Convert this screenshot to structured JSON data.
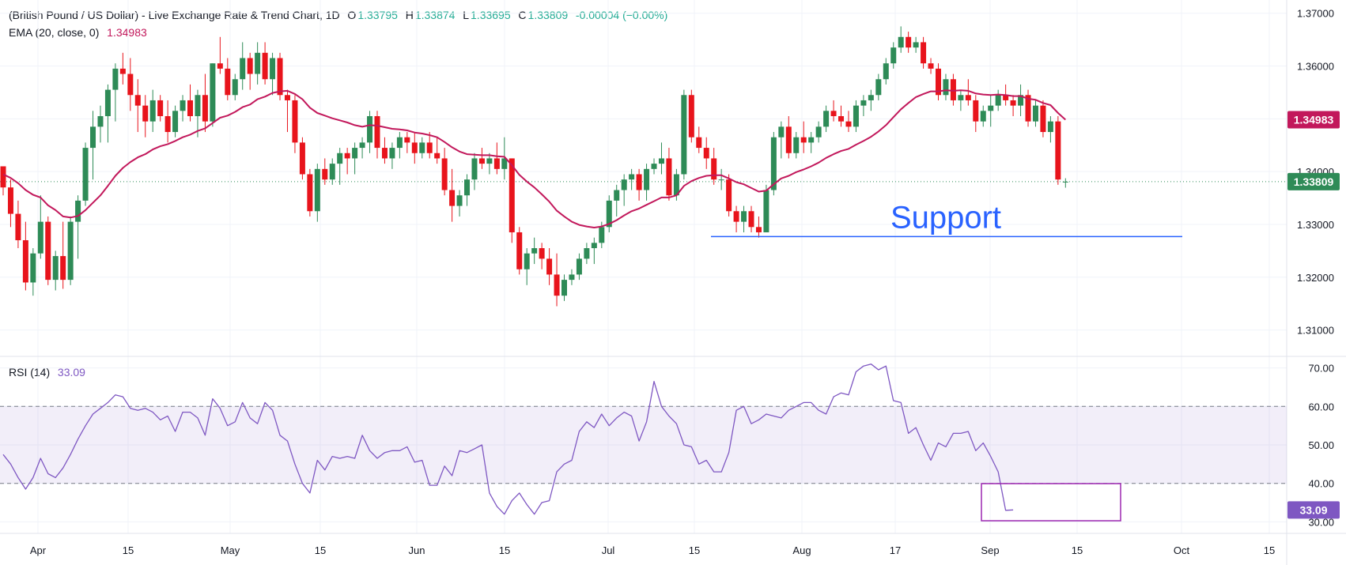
{
  "header": {
    "title": "(British Pound / US Dollar) - Live Exchange Rate & Trend Chart, 1D",
    "o_label": "O",
    "o": "1.33795",
    "h_label": "H",
    "h": "1.33874",
    "l_label": "L",
    "l": "1.33695",
    "c_label": "C",
    "c": "1.33809",
    "change": "-0.00004 (−0.00%)",
    "ema_label": "EMA (20, close, 0)",
    "ema_value": "1.34983",
    "rsi_label": "RSI (14)",
    "rsi_value": "33.09"
  },
  "colors": {
    "up": "#2E8B57",
    "down": "#E8141C",
    "ema": "#C2185B",
    "rsi": "#7E57C2",
    "support": "#2962FF",
    "price_label_bg": "#2E8B57"
  },
  "chart_data": [
    {
      "type": "candlestick",
      "ylim": [
        1.305,
        1.3725
      ],
      "y_ticks": [
        "1.37000",
        "1.36000",
        "1.35000",
        "1.34000",
        "1.33000",
        "1.32000",
        "1.31000"
      ],
      "x_ticks": [
        "Apr",
        "15",
        "May",
        "15",
        "Jun",
        "15",
        "Jul",
        "15",
        "Aug",
        "17",
        "Sep",
        "15",
        "Oct",
        "15"
      ],
      "last_price": "1.33809",
      "ema_last": "1.34983",
      "annotation": "Support",
      "support_level": 1.3277,
      "ohlc": [
        [
          1.341,
          1.341,
          1.3355,
          1.337
        ],
        [
          1.337,
          1.3385,
          1.3295,
          1.332
        ],
        [
          1.332,
          1.3345,
          1.3255,
          1.327
        ],
        [
          1.327,
          1.3305,
          1.3175,
          1.319
        ],
        [
          1.319,
          1.3255,
          1.3165,
          1.3245
        ],
        [
          1.3245,
          1.3355,
          1.3235,
          1.3305
        ],
        [
          1.3305,
          1.3315,
          1.3185,
          1.3195
        ],
        [
          1.3195,
          1.325,
          1.3175,
          1.324
        ],
        [
          1.324,
          1.3305,
          1.3178,
          1.3195
        ],
        [
          1.3195,
          1.3315,
          1.3185,
          1.3305
        ],
        [
          1.3305,
          1.3355,
          1.3235,
          1.3345
        ],
        [
          1.3345,
          1.3455,
          1.3335,
          1.3445
        ],
        [
          1.3445,
          1.3515,
          1.3385,
          1.3485
        ],
        [
          1.3485,
          1.3525,
          1.3455,
          1.3505
        ],
        [
          1.3505,
          1.3565,
          1.3455,
          1.3555
        ],
        [
          1.3555,
          1.3605,
          1.3495,
          1.3595
        ],
        [
          1.3595,
          1.3625,
          1.3565,
          1.3585
        ],
        [
          1.3585,
          1.3615,
          1.3515,
          1.3545
        ],
        [
          1.3545,
          1.3575,
          1.3475,
          1.3525
        ],
        [
          1.3525,
          1.3545,
          1.3465,
          1.3495
        ],
        [
          1.3495,
          1.3555,
          1.3475,
          1.3535
        ],
        [
          1.3535,
          1.3545,
          1.3495,
          1.3505
        ],
        [
          1.3505,
          1.3535,
          1.3455,
          1.3475
        ],
        [
          1.3475,
          1.3525,
          1.3465,
          1.3515
        ],
        [
          1.3515,
          1.3545,
          1.3495,
          1.3535
        ],
        [
          1.3535,
          1.3565,
          1.3495,
          1.3505
        ],
        [
          1.3505,
          1.3555,
          1.3465,
          1.3545
        ],
        [
          1.3545,
          1.3585,
          1.3475,
          1.3495
        ],
        [
          1.3495,
          1.3605,
          1.3485,
          1.3605
        ],
        [
          1.3605,
          1.3655,
          1.3585,
          1.3595
        ],
        [
          1.3595,
          1.3615,
          1.3535,
          1.3545
        ],
        [
          1.3545,
          1.3585,
          1.3535,
          1.3575
        ],
        [
          1.3575,
          1.3645,
          1.3555,
          1.3615
        ],
        [
          1.3615,
          1.3625,
          1.3555,
          1.3585
        ],
        [
          1.3585,
          1.3645,
          1.3565,
          1.3625
        ],
        [
          1.3625,
          1.3645,
          1.3565,
          1.3575
        ],
        [
          1.3575,
          1.3625,
          1.3545,
          1.3615
        ],
        [
          1.3615,
          1.3625,
          1.3535,
          1.3545
        ],
        [
          1.3545,
          1.3555,
          1.3475,
          1.3535
        ],
        [
          1.3535,
          1.3545,
          1.3435,
          1.3455
        ],
        [
          1.3455,
          1.3465,
          1.3385,
          1.3395
        ],
        [
          1.3395,
          1.3405,
          1.3315,
          1.3325
        ],
        [
          1.3325,
          1.3415,
          1.3305,
          1.3405
        ],
        [
          1.3405,
          1.3425,
          1.3375,
          1.3385
        ],
        [
          1.3385,
          1.3425,
          1.3375,
          1.3415
        ],
        [
          1.3415,
          1.3445,
          1.3375,
          1.3435
        ],
        [
          1.3435,
          1.3445,
          1.3395,
          1.3425
        ],
        [
          1.3425,
          1.3455,
          1.3395,
          1.3445
        ],
        [
          1.3445,
          1.3465,
          1.3425,
          1.3455
        ],
        [
          1.3455,
          1.3515,
          1.3435,
          1.3505
        ],
        [
          1.3505,
          1.3515,
          1.3425,
          1.3445
        ],
        [
          1.3445,
          1.3465,
          1.3415,
          1.3425
        ],
        [
          1.3425,
          1.3455,
          1.3405,
          1.3445
        ],
        [
          1.3445,
          1.3475,
          1.3425,
          1.3465
        ],
        [
          1.3465,
          1.3475,
          1.3435,
          1.3455
        ],
        [
          1.3455,
          1.3475,
          1.3415,
          1.3435
        ],
        [
          1.3435,
          1.3465,
          1.3425,
          1.3455
        ],
        [
          1.3455,
          1.3475,
          1.3425,
          1.3435
        ],
        [
          1.3435,
          1.3465,
          1.3415,
          1.3425
        ],
        [
          1.3425,
          1.3445,
          1.3355,
          1.3365
        ],
        [
          1.3365,
          1.3405,
          1.3305,
          1.3335
        ],
        [
          1.3335,
          1.3365,
          1.3315,
          1.3355
        ],
        [
          1.3355,
          1.3395,
          1.3335,
          1.3385
        ],
        [
          1.3385,
          1.3435,
          1.3365,
          1.3425
        ],
        [
          1.3425,
          1.3445,
          1.3405,
          1.3415
        ],
        [
          1.3415,
          1.3435,
          1.3395,
          1.3425
        ],
        [
          1.3425,
          1.3455,
          1.3395,
          1.3405
        ],
        [
          1.3405,
          1.3465,
          1.3385,
          1.3425
        ],
        [
          1.3425,
          1.3425,
          1.3265,
          1.3285
        ],
        [
          1.3285,
          1.3295,
          1.3205,
          1.3215
        ],
        [
          1.3215,
          1.3255,
          1.3185,
          1.3245
        ],
        [
          1.3245,
          1.3275,
          1.3225,
          1.3255
        ],
        [
          1.3255,
          1.3265,
          1.3215,
          1.3235
        ],
        [
          1.3235,
          1.3255,
          1.3185,
          1.3205
        ],
        [
          1.3205,
          1.3245,
          1.3145,
          1.3165
        ],
        [
          1.3165,
          1.3205,
          1.3155,
          1.3195
        ],
        [
          1.3195,
          1.3215,
          1.3185,
          1.3205
        ],
        [
          1.3205,
          1.3245,
          1.3195,
          1.3235
        ],
        [
          1.3235,
          1.3265,
          1.3225,
          1.3255
        ],
        [
          1.3255,
          1.3275,
          1.3225,
          1.3265
        ],
        [
          1.3265,
          1.3305,
          1.3255,
          1.3295
        ],
        [
          1.3295,
          1.3355,
          1.3285,
          1.3345
        ],
        [
          1.3345,
          1.3375,
          1.3315,
          1.3365
        ],
        [
          1.3365,
          1.3395,
          1.3335,
          1.3385
        ],
        [
          1.3385,
          1.3405,
          1.3365,
          1.3395
        ],
        [
          1.3395,
          1.3405,
          1.3345,
          1.3365
        ],
        [
          1.3365,
          1.3415,
          1.3345,
          1.3405
        ],
        [
          1.3405,
          1.3425,
          1.3395,
          1.3415
        ],
        [
          1.3415,
          1.3455,
          1.3395,
          1.3425
        ],
        [
          1.3425,
          1.3445,
          1.3345,
          1.3355
        ],
        [
          1.3355,
          1.3405,
          1.3345,
          1.3395
        ],
        [
          1.3395,
          1.3555,
          1.3385,
          1.3545
        ],
        [
          1.3545,
          1.3555,
          1.3455,
          1.3465
        ],
        [
          1.3465,
          1.3485,
          1.3435,
          1.3445
        ],
        [
          1.3445,
          1.3465,
          1.3405,
          1.3425
        ],
        [
          1.3425,
          1.3445,
          1.3375,
          1.3385
        ],
        [
          1.3385,
          1.3405,
          1.3365,
          1.3385
        ],
        [
          1.3385,
          1.3395,
          1.3315,
          1.3325
        ],
        [
          1.3325,
          1.3335,
          1.3285,
          1.3305
        ],
        [
          1.3305,
          1.3335,
          1.3285,
          1.3325
        ],
        [
          1.3325,
          1.3335,
          1.3285,
          1.3295
        ],
        [
          1.3295,
          1.3315,
          1.3275,
          1.3285
        ],
        [
          1.3285,
          1.3375,
          1.3285,
          1.3365
        ],
        [
          1.3365,
          1.3475,
          1.3355,
          1.3465
        ],
        [
          1.3465,
          1.3495,
          1.3425,
          1.3485
        ],
        [
          1.3485,
          1.3505,
          1.3425,
          1.3435
        ],
        [
          1.3435,
          1.3475,
          1.3425,
          1.3465
        ],
        [
          1.3465,
          1.3495,
          1.3435,
          1.3455
        ],
        [
          1.3455,
          1.3475,
          1.3435,
          1.3465
        ],
        [
          1.3465,
          1.3495,
          1.3455,
          1.3485
        ],
        [
          1.3485,
          1.3525,
          1.3475,
          1.3515
        ],
        [
          1.3515,
          1.3535,
          1.3495,
          1.3505
        ],
        [
          1.3505,
          1.3525,
          1.3485,
          1.3495
        ],
        [
          1.3495,
          1.3515,
          1.3475,
          1.3485
        ],
        [
          1.3485,
          1.3535,
          1.3475,
          1.3525
        ],
        [
          1.3525,
          1.3545,
          1.3505,
          1.3535
        ],
        [
          1.3535,
          1.3555,
          1.3515,
          1.3545
        ],
        [
          1.3545,
          1.3585,
          1.3535,
          1.3575
        ],
        [
          1.3575,
          1.3615,
          1.3565,
          1.3605
        ],
        [
          1.3605,
          1.3645,
          1.3595,
          1.3635
        ],
        [
          1.3635,
          1.3675,
          1.3625,
          1.3655
        ],
        [
          1.3655,
          1.3665,
          1.3625,
          1.3635
        ],
        [
          1.3635,
          1.3655,
          1.3625,
          1.3645
        ],
        [
          1.3645,
          1.3655,
          1.3595,
          1.3605
        ],
        [
          1.3605,
          1.3615,
          1.3585,
          1.3595
        ],
        [
          1.3595,
          1.3605,
          1.3535,
          1.3545
        ],
        [
          1.3545,
          1.3585,
          1.3535,
          1.3575
        ],
        [
          1.3575,
          1.3585,
          1.3525,
          1.3535
        ],
        [
          1.3535,
          1.3555,
          1.3515,
          1.3545
        ],
        [
          1.3545,
          1.3575,
          1.3525,
          1.3535
        ],
        [
          1.3535,
          1.3545,
          1.3475,
          1.3495
        ],
        [
          1.3495,
          1.3525,
          1.3485,
          1.3515
        ],
        [
          1.3515,
          1.3545,
          1.3485,
          1.3525
        ],
        [
          1.3525,
          1.3555,
          1.3515,
          1.3545
        ],
        [
          1.3545,
          1.3565,
          1.3525,
          1.3535
        ],
        [
          1.3535,
          1.3545,
          1.3505,
          1.3525
        ],
        [
          1.3525,
          1.3565,
          1.3505,
          1.3545
        ],
        [
          1.3545,
          1.3555,
          1.3485,
          1.3495
        ],
        [
          1.3495,
          1.3535,
          1.3485,
          1.3525
        ],
        [
          1.3525,
          1.3535,
          1.3465,
          1.3475
        ],
        [
          1.3475,
          1.3505,
          1.3455,
          1.3495
        ],
        [
          1.3495,
          1.3505,
          1.3375,
          1.3385
        ],
        [
          1.33795,
          1.33874,
          1.33695,
          1.33809
        ]
      ],
      "ema": [
        1.3395,
        1.3388,
        1.3378,
        1.3365,
        1.3356,
        1.3351,
        1.3336,
        1.3327,
        1.3315,
        1.3313,
        1.3316,
        1.3327,
        1.3341,
        1.3355,
        1.3373,
        1.3392,
        1.3407,
        1.3418,
        1.3427,
        1.3433,
        1.3442,
        1.3448,
        1.3452,
        1.3458,
        1.3465,
        1.347,
        1.3477,
        1.3482,
        1.3492,
        1.3502,
        1.3506,
        1.3513,
        1.3522,
        1.3527,
        1.3537,
        1.3542,
        1.3549,
        1.3552,
        1.3553,
        1.3547,
        1.3537,
        1.3521,
        1.3511,
        1.3506,
        1.3501,
        1.3497,
        1.3493,
        1.3488,
        1.3485,
        1.3488,
        1.3487,
        1.3484,
        1.3481,
        1.348,
        1.3478,
        1.3474,
        1.3472,
        1.3469,
        1.3465,
        1.3456,
        1.3446,
        1.3438,
        1.3433,
        1.3432,
        1.3431,
        1.3431,
        1.3429,
        1.3428,
        1.3412,
        1.3394,
        1.3381,
        1.337,
        1.3357,
        1.3343,
        1.3326,
        1.3315,
        1.3305,
        1.3299,
        1.3296,
        1.3294,
        1.3296,
        1.3301,
        1.3308,
        1.3317,
        1.3325,
        1.333,
        1.3337,
        1.3344,
        1.3351,
        1.3351,
        1.3355,
        1.3373,
        1.3382,
        1.3388,
        1.3392,
        1.3393,
        1.3393,
        1.3387,
        1.338,
        1.3376,
        1.3369,
        1.3362,
        1.3364,
        1.3376,
        1.3387,
        1.3392,
        1.3399,
        1.3404,
        1.341,
        1.3417,
        1.3426,
        1.3433,
        1.3439,
        1.3443,
        1.3451,
        1.3458,
        1.3466,
        1.3476,
        1.3488,
        1.3503,
        1.3518,
        1.353,
        1.3541,
        1.3547,
        1.3552,
        1.3552,
        1.3554,
        1.3553,
        1.3554,
        1.3553,
        1.3548,
        1.3546,
        1.3545,
        1.3546,
        1.3545,
        1.3543,
        1.3543,
        1.3538,
        1.3536,
        1.353,
        1.3526,
        1.3511,
        1.34983
      ]
    },
    {
      "type": "line",
      "name": "RSI (14)",
      "ylim": [
        27,
        73
      ],
      "y_ticks": [
        "70.00",
        "60.00",
        "50.00",
        "40.00",
        "30.00"
      ],
      "band": [
        40,
        60
      ],
      "last_value": "33.09",
      "values": [
        47.5,
        45,
        41.5,
        38.5,
        41.5,
        46.5,
        42.5,
        41.5,
        44,
        47.5,
        51.5,
        55,
        58,
        59.5,
        61,
        63,
        62.5,
        59.5,
        59,
        59.5,
        58.5,
        56.5,
        57.5,
        53.5,
        58.5,
        58.5,
        57,
        52.5,
        62,
        59.5,
        55,
        56,
        61,
        57,
        55.5,
        61,
        59,
        52.5,
        51,
        45,
        40,
        37.5,
        46,
        43.5,
        47,
        46.5,
        47,
        46.5,
        52.5,
        48.5,
        46.5,
        48,
        48.5,
        48.5,
        49.5,
        45.5,
        46,
        39.5,
        39.5,
        44.5,
        42,
        48.5,
        48,
        49,
        50,
        37.5,
        34,
        32,
        35.5,
        37.5,
        34.5,
        32,
        35,
        35.5,
        43,
        45,
        46,
        53.5,
        56,
        54.5,
        58,
        55,
        57,
        58.5,
        57.5,
        51,
        56,
        66.5,
        60,
        57.5,
        55.5,
        50,
        49.5,
        45,
        46,
        43,
        43,
        48,
        59,
        60,
        55.5,
        56.5,
        58,
        57.5,
        57,
        59,
        60,
        61,
        61,
        59,
        58,
        62.5,
        63.5,
        63,
        69,
        70.5,
        71,
        69.5,
        70.5,
        61.5,
        61,
        53,
        54.5,
        50,
        46,
        50.5,
        49.5,
        53,
        53,
        53.5,
        48.5,
        50.5,
        47,
        43,
        33,
        33.09
      ]
    }
  ]
}
